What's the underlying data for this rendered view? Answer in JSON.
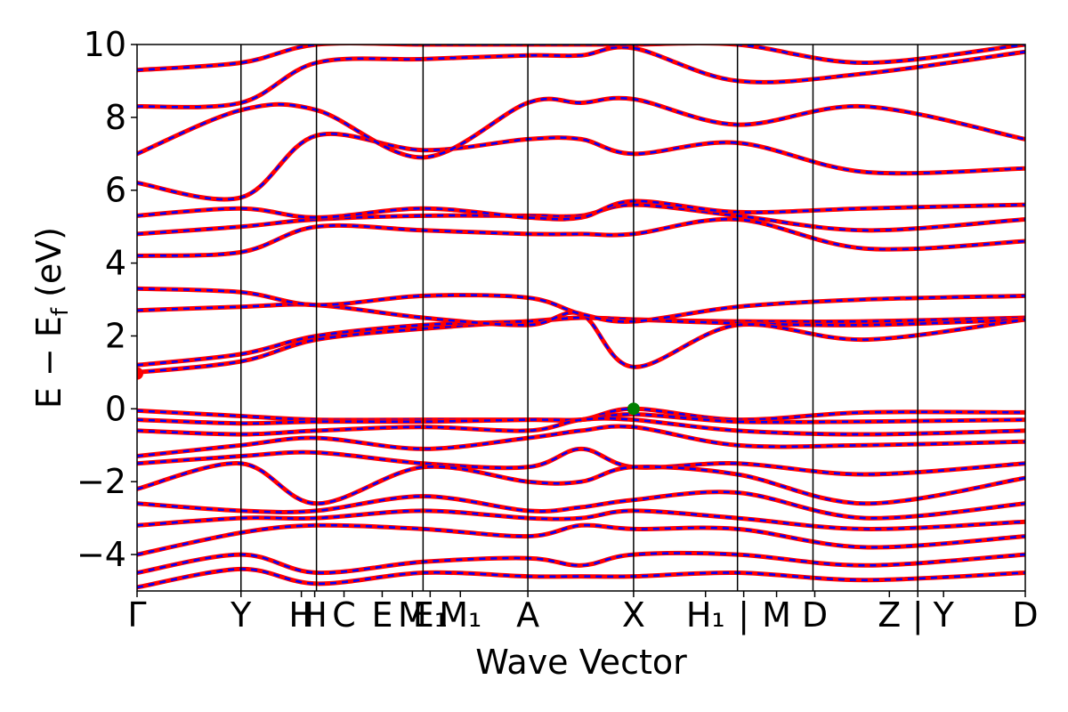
{
  "chart_data": {
    "type": "line",
    "xlabel": "Wave Vector",
    "ylabel": "E − E",
    "ylabel_sub": "f",
    "ylabel_unit": " (eV)",
    "ylim": [
      -5,
      10
    ],
    "y_ticks": [
      -4,
      -2,
      0,
      2,
      4,
      6,
      8,
      10
    ],
    "grid": false,
    "legend": "none",
    "colors": {
      "solid": "#ff0000",
      "dashed": "#0000ff",
      "marker_vbm": "#008000",
      "marker_cbm": "#ff0000",
      "frame": "#000000"
    },
    "k_points": [
      {
        "label": "Γ",
        "x": 0.0
      },
      {
        "label": "Y",
        "x": 0.117
      },
      {
        "label": "H",
        "x": 0.185
      },
      {
        "label": "H",
        "x": 0.2
      },
      {
        "label": "C",
        "x": 0.233
      },
      {
        "label": "E",
        "x": 0.276
      },
      {
        "label": "M",
        "x": 0.31
      },
      {
        "label": "E₁",
        "x": 0.33
      },
      {
        "label": "M₁",
        "x": 0.364
      },
      {
        "label": "A",
        "x": 0.44
      },
      {
        "label": "X",
        "x": 0.559
      },
      {
        "label": "H₁",
        "x": 0.64
      },
      {
        "label": "|",
        "x": 0.683
      },
      {
        "label": "M",
        "x": 0.72
      },
      {
        "label": "D",
        "x": 0.763
      },
      {
        "label": "Z",
        "x": 0.847
      },
      {
        "label": "|",
        "x": 0.879
      },
      {
        "label": "Y",
        "x": 0.908
      },
      {
        "label": "D",
        "x": 1.0
      }
    ],
    "segment_boundaries": [
      0.117,
      0.202,
      0.322,
      0.44,
      0.559,
      0.676,
      0.761,
      0.879
    ],
    "series": [
      {
        "y": [
          1.0,
          1.3,
          1.9,
          2.2,
          2.4,
          2.5,
          2.45,
          2.4,
          2.4,
          2.5
        ]
      },
      {
        "y": [
          1.2,
          1.5,
          2.0,
          2.3,
          2.4,
          2.5,
          2.45,
          2.35,
          2.3,
          2.45
        ]
      },
      {
        "y": [
          2.7,
          2.8,
          2.85,
          2.5,
          2.3,
          2.6,
          1.15,
          2.3,
          1.9,
          2.45
        ]
      },
      {
        "y": [
          3.3,
          3.2,
          2.85,
          3.1,
          3.05,
          2.6,
          2.4,
          2.8,
          3.0,
          3.1
        ]
      },
      {
        "y": [
          4.2,
          4.3,
          5.0,
          4.9,
          4.8,
          4.8,
          4.8,
          5.2,
          4.4,
          4.6
        ]
      },
      {
        "y": [
          4.8,
          5.0,
          5.2,
          5.3,
          5.3,
          5.3,
          5.6,
          5.3,
          4.9,
          5.2
        ]
      },
      {
        "y": [
          5.3,
          5.5,
          5.25,
          5.5,
          5.25,
          5.25,
          5.7,
          5.4,
          5.5,
          5.6
        ]
      },
      {
        "y": [
          6.2,
          5.8,
          7.5,
          7.1,
          7.4,
          7.4,
          7.0,
          7.3,
          6.5,
          6.6
        ]
      },
      {
        "y": [
          7.0,
          8.2,
          8.2,
          6.9,
          8.4,
          8.4,
          8.5,
          7.8,
          8.3,
          7.4
        ]
      },
      {
        "y": [
          8.3,
          8.4,
          9.5,
          9.6,
          9.7,
          9.7,
          9.9,
          9.0,
          9.2,
          9.8
        ]
      },
      {
        "y": [
          9.3,
          9.5,
          10.0,
          10.0,
          10.0,
          10.0,
          10.0,
          10.0,
          9.5,
          10.0
        ]
      },
      {
        "y": [
          -0.05,
          -0.2,
          -0.3,
          -0.3,
          -0.3,
          -0.3,
          0.0,
          -0.3,
          -0.1,
          -0.1
        ]
      },
      {
        "y": [
          -0.3,
          -0.4,
          -0.35,
          -0.35,
          -0.3,
          -0.3,
          -0.15,
          -0.35,
          -0.35,
          -0.3
        ]
      },
      {
        "y": [
          -0.6,
          -0.7,
          -0.6,
          -0.5,
          -0.6,
          -0.3,
          -0.3,
          -0.6,
          -0.7,
          -0.6
        ]
      },
      {
        "y": [
          -1.3,
          -1.0,
          -0.8,
          -1.1,
          -0.8,
          -0.6,
          -0.5,
          -1.0,
          -1.0,
          -0.9
        ]
      },
      {
        "y": [
          -1.5,
          -1.3,
          -1.2,
          -1.5,
          -1.6,
          -1.1,
          -1.6,
          -1.5,
          -1.8,
          -1.5
        ]
      },
      {
        "y": [
          -2.2,
          -1.5,
          -2.6,
          -1.6,
          -2.0,
          -2.0,
          -1.6,
          -1.8,
          -2.6,
          -1.9
        ]
      },
      {
        "y": [
          -2.6,
          -2.8,
          -2.8,
          -2.4,
          -2.8,
          -2.7,
          -2.5,
          -2.3,
          -3.0,
          -2.6
        ]
      },
      {
        "y": [
          -3.2,
          -3.0,
          -3.0,
          -2.8,
          -3.0,
          -3.0,
          -2.8,
          -3.0,
          -3.3,
          -3.1
        ]
      },
      {
        "y": [
          -4.0,
          -3.4,
          -3.2,
          -3.3,
          -3.5,
          -3.2,
          -3.3,
          -3.3,
          -3.8,
          -3.5
        ]
      },
      {
        "y": [
          -4.5,
          -4.0,
          -4.5,
          -4.2,
          -4.1,
          -4.3,
          -4.0,
          -4.0,
          -4.3,
          -4.0
        ]
      },
      {
        "y": [
          -4.9,
          -4.4,
          -4.8,
          -4.5,
          -4.6,
          -4.6,
          -4.6,
          -4.5,
          -4.7,
          -4.5
        ]
      }
    ],
    "band_x": [
      0.0,
      0.117,
      0.202,
      0.322,
      0.44,
      0.5,
      0.559,
      0.676,
      0.819,
      1.0
    ],
    "markers": [
      {
        "x": 0.559,
        "y": 0.0,
        "kind": "marker_vbm"
      },
      {
        "x": 0.0,
        "y": 0.97,
        "kind": "marker_cbm"
      }
    ]
  }
}
